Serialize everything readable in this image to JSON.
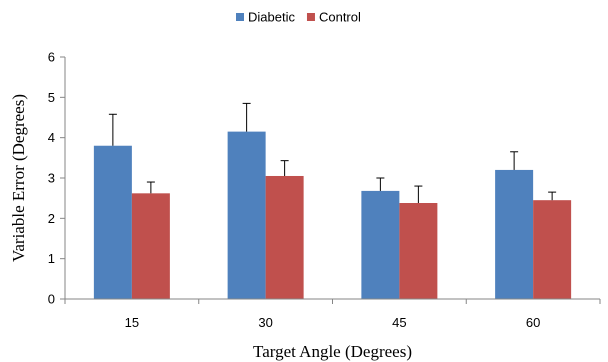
{
  "chart_data": {
    "type": "bar",
    "title": "",
    "xlabel": "Target Angle (Degrees)",
    "ylabel": "Variable Error (Degrees)",
    "categories": [
      "15",
      "30",
      "45",
      "60"
    ],
    "ylim": [
      0,
      6
    ],
    "yticks": [
      0,
      1,
      2,
      3,
      4,
      5,
      6
    ],
    "grid": false,
    "legend_position": "top-center",
    "series": [
      {
        "name": "Diabetic",
        "color": "#4f81bd",
        "values": [
          3.8,
          4.15,
          2.68,
          3.2
        ],
        "error_plus": [
          0.78,
          0.7,
          0.32,
          0.45
        ]
      },
      {
        "name": "Control",
        "color": "#c0504d",
        "values": [
          2.62,
          3.05,
          2.38,
          2.45
        ],
        "error_plus": [
          0.28,
          0.38,
          0.42,
          0.2
        ]
      }
    ]
  }
}
